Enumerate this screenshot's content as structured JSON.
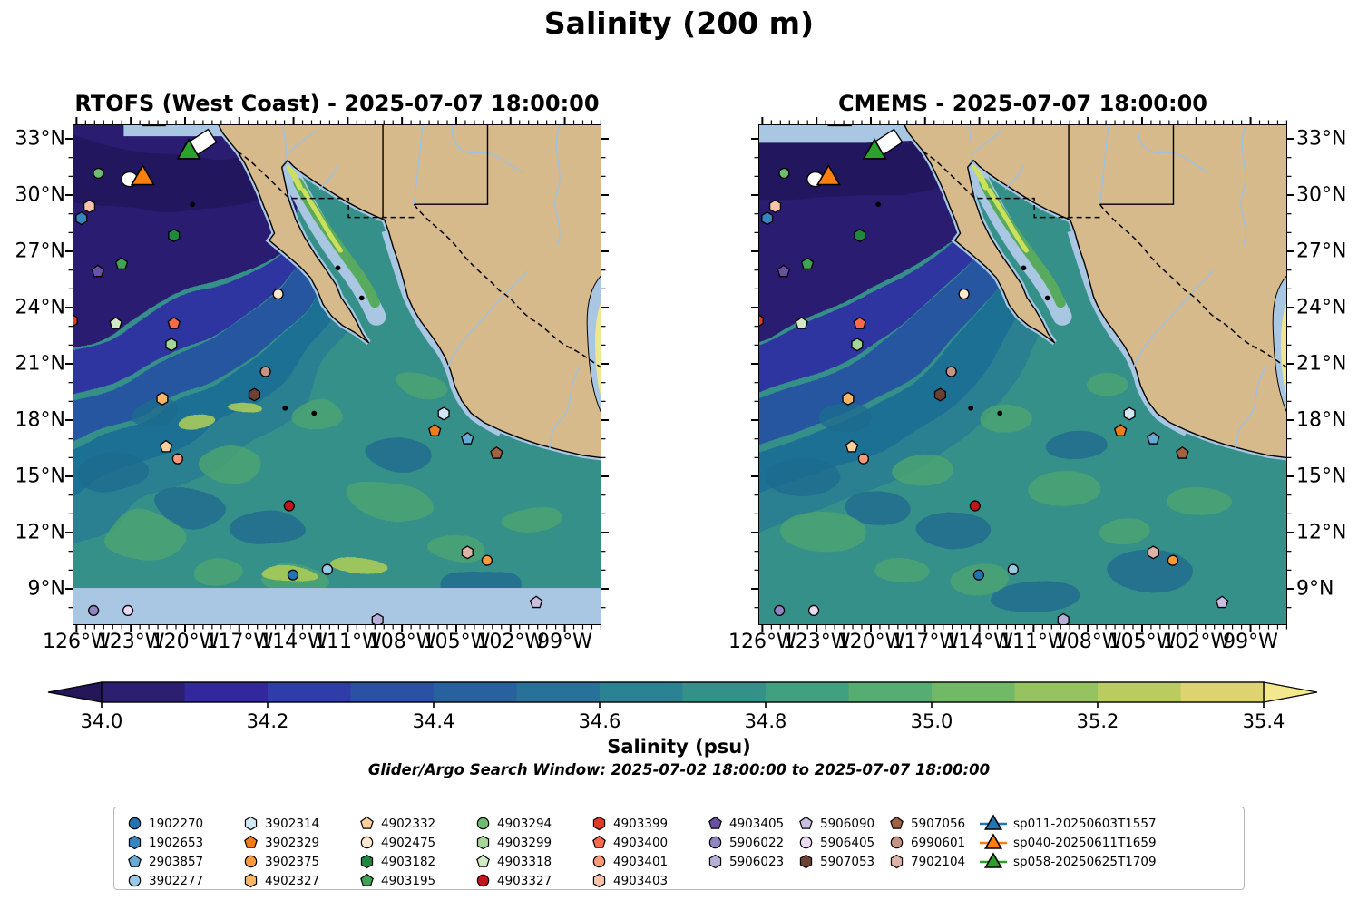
{
  "title": "Salinity (200 m)",
  "subtitle": "Glider/Argo Search Window: 2025-07-02 18:00:00 to 2025-07-07 18:00:00",
  "maps": [
    {
      "title": "RTOFS (West Coast) - 2025-07-07 18:00:00",
      "variant": "rtofs"
    },
    {
      "title": "CMEMS - 2025-07-07 18:00:00",
      "variant": "cmems"
    }
  ],
  "axes": {
    "lat_tick_labels": [
      "33°N",
      "30°N",
      "27°N",
      "24°N",
      "21°N",
      "18°N",
      "15°N",
      "12°N",
      "9°N"
    ],
    "lon_tick_labels": [
      "126°W",
      "123°W",
      "120°W",
      "117°W",
      "114°W",
      "111°W",
      "108°W",
      "105°W",
      "102°W",
      "99°W"
    ]
  },
  "colorbar": {
    "label": "Salinity (psu)",
    "tick_labels": [
      "34.0",
      "34.2",
      "34.4",
      "34.6",
      "34.8",
      "35.0",
      "35.2",
      "35.4"
    ],
    "range": [
      34.0,
      35.4
    ],
    "under_color": "#241658",
    "over_color": "#f4e88e",
    "segment_colors": [
      "#2c1e70",
      "#33279c",
      "#2f3da8",
      "#2a51a4",
      "#27629e",
      "#287299",
      "#2b8292",
      "#33918a",
      "#40a07f",
      "#55ad72",
      "#72b967",
      "#95c35f",
      "#bacb60",
      "#ddd471"
    ]
  },
  "colors": {
    "land": "#d7ba8c",
    "shallow": "#a9c6e2",
    "river": "#9dc1e4",
    "ocean_base": "#35908a",
    "coastline": "#000000"
  },
  "legend": {
    "columns": [
      [
        {
          "id": "1902270",
          "shape": "circle",
          "color": "#2272b4"
        },
        {
          "id": "1902653",
          "shape": "hexagon",
          "color": "#3585c0"
        },
        {
          "id": "2903857",
          "shape": "pentagon",
          "color": "#68aad4"
        },
        {
          "id": "3902277",
          "shape": "circle",
          "color": "#9ac8e6"
        }
      ],
      [
        {
          "id": "3902314",
          "shape": "hexagon",
          "color": "#d2e6f4"
        },
        {
          "id": "3902329",
          "shape": "pentagon",
          "color": "#f07d1a"
        },
        {
          "id": "3902375",
          "shape": "circle",
          "color": "#fb9a3c"
        },
        {
          "id": "4902327",
          "shape": "hexagon",
          "color": "#fdb567"
        }
      ],
      [
        {
          "id": "4902332",
          "shape": "pentagon",
          "color": "#fdcf9b"
        },
        {
          "id": "4902475",
          "shape": "circle",
          "color": "#fee8cf"
        },
        {
          "id": "4903182",
          "shape": "hexagon",
          "color": "#20873f"
        },
        {
          "id": "4903195",
          "shape": "pentagon",
          "color": "#41a257"
        }
      ],
      [
        {
          "id": "4903294",
          "shape": "circle",
          "color": "#6cbd6f"
        },
        {
          "id": "4903299",
          "shape": "hexagon",
          "color": "#a3d798"
        },
        {
          "id": "4903318",
          "shape": "pentagon",
          "color": "#cfeac4"
        },
        {
          "id": "4903327",
          "shape": "circle",
          "color": "#c3161c"
        }
      ],
      [
        {
          "id": "4903399",
          "shape": "hexagon",
          "color": "#e23a28"
        },
        {
          "id": "4903400",
          "shape": "pentagon",
          "color": "#f9694c"
        },
        {
          "id": "4903401",
          "shape": "circle",
          "color": "#fc9a78"
        },
        {
          "id": "4903403",
          "shape": "hexagon",
          "color": "#fcc3ac"
        }
      ],
      [
        {
          "id": "4903405",
          "shape": "pentagon",
          "color": "#6a51a3"
        },
        {
          "id": "5906022",
          "shape": "circle",
          "color": "#9085c0"
        },
        {
          "id": "5906023",
          "shape": "hexagon",
          "color": "#b6b0d8"
        }
      ],
      [
        {
          "id": "5906090",
          "shape": "pentagon",
          "color": "#c9bfe0"
        },
        {
          "id": "5906405",
          "shape": "circle",
          "color": "#ecd9f2"
        },
        {
          "id": "5907053",
          "shape": "hexagon",
          "color": "#6d4034"
        }
      ],
      [
        {
          "id": "5907056",
          "shape": "pentagon",
          "color": "#a16242"
        },
        {
          "id": "6990601",
          "shape": "circle",
          "color": "#c59485"
        },
        {
          "id": "7902104",
          "shape": "hexagon",
          "color": "#ddb3a8"
        }
      ],
      [
        {
          "id": "sp011-20250603T1557",
          "shape": "triangle",
          "color": "#1f77b4"
        },
        {
          "id": "sp040-20250611T1659",
          "shape": "triangle",
          "color": "#ff7f0e"
        },
        {
          "id": "sp058-20250625T1709",
          "shape": "triangle",
          "color": "#2ca02c"
        }
      ]
    ]
  },
  "markers": [
    {
      "id": "glider-track-patch",
      "shape": "quad",
      "color": "#ffffff",
      "fx": 0.241,
      "fy": 0.036
    },
    {
      "id": "sp058-20250625T1709",
      "shape": "triangle",
      "color": "#2ca02c",
      "fx": 0.218,
      "fy": 0.054
    },
    {
      "id": "sp011-20250603T1557",
      "shape": "triangle",
      "color": "#1f77b4",
      "fx": 0.152,
      "fy": -0.012
    },
    {
      "id": "glider-track-crescent",
      "shape": "crescent",
      "color": "#ffffff",
      "fx": 0.106,
      "fy": 0.108
    },
    {
      "id": "sp040-20250611T1659",
      "shape": "triangle",
      "color": "#ff7f0e",
      "fx": 0.131,
      "fy": 0.106
    },
    {
      "id": "4903294",
      "shape": "circle",
      "color": "#6cbd6f",
      "fx": 0.047,
      "fy": 0.096
    },
    {
      "id": "4903403",
      "shape": "hexagon",
      "color": "#fcc3ac",
      "fx": 0.03,
      "fy": 0.162
    },
    {
      "id": "1902653",
      "shape": "hexagon",
      "color": "#3585c0",
      "fx": 0.015,
      "fy": 0.186
    },
    {
      "id": "4903182",
      "shape": "hexagon",
      "color": "#20873f",
      "fx": 0.19,
      "fy": 0.22
    },
    {
      "id": "4903195",
      "shape": "pentagon",
      "color": "#41a257",
      "fx": 0.091,
      "fy": 0.277
    },
    {
      "id": "4903405",
      "shape": "pentagon",
      "color": "#6a51a3",
      "fx": 0.046,
      "fy": 0.292
    },
    {
      "id": "4902475",
      "shape": "circle",
      "color": "#fee8cf",
      "fx": 0.387,
      "fy": 0.337
    },
    {
      "id": "4903399",
      "shape": "hexagon",
      "color": "#e23a28",
      "fx": -0.003,
      "fy": 0.39
    },
    {
      "id": "4903318",
      "shape": "pentagon",
      "color": "#cfeac4",
      "fx": 0.08,
      "fy": 0.396
    },
    {
      "id": "4903400",
      "shape": "pentagon",
      "color": "#f9694c",
      "fx": 0.19,
      "fy": 0.396
    },
    {
      "id": "4903299",
      "shape": "hexagon",
      "color": "#a3d798",
      "fx": 0.185,
      "fy": 0.438
    },
    {
      "id": "6990601",
      "shape": "circle",
      "color": "#c59485",
      "fx": 0.363,
      "fy": 0.492
    },
    {
      "id": "5907053",
      "shape": "hexagon",
      "color": "#6d4034",
      "fx": 0.342,
      "fy": 0.538
    },
    {
      "id": "4902327",
      "shape": "hexagon",
      "color": "#fdb567",
      "fx": 0.168,
      "fy": 0.546
    },
    {
      "id": "3902314",
      "shape": "hexagon",
      "color": "#d2e6f4",
      "fx": 0.7,
      "fy": 0.576
    },
    {
      "id": "3902329",
      "shape": "pentagon",
      "color": "#f07d1a",
      "fx": 0.683,
      "fy": 0.61
    },
    {
      "id": "2903857",
      "shape": "pentagon",
      "color": "#68aad4",
      "fx": 0.745,
      "fy": 0.626
    },
    {
      "id": "4902332",
      "shape": "pentagon",
      "color": "#fdcf9b",
      "fx": 0.175,
      "fy": 0.642
    },
    {
      "id": "5907056",
      "shape": "pentagon",
      "color": "#a16242",
      "fx": 0.8,
      "fy": 0.655
    },
    {
      "id": "4903401",
      "shape": "circle",
      "color": "#fc9a78",
      "fx": 0.197,
      "fy": 0.666
    },
    {
      "id": "4903327",
      "shape": "circle",
      "color": "#c3161c",
      "fx": 0.408,
      "fy": 0.76
    },
    {
      "id": "7902104",
      "shape": "hexagon",
      "color": "#ddb3a8",
      "fx": 0.745,
      "fy": 0.853
    },
    {
      "id": "3902375",
      "shape": "circle",
      "color": "#fb9a3c",
      "fx": 0.782,
      "fy": 0.869
    },
    {
      "id": "3902277",
      "shape": "circle",
      "color": "#9ac8e6",
      "fx": 0.48,
      "fy": 0.887
    },
    {
      "id": "1902270",
      "shape": "circle",
      "color": "#2272b4",
      "fx": 0.415,
      "fy": 0.898
    },
    {
      "id": "5906090",
      "shape": "pentagon",
      "color": "#c9bfe0",
      "fx": 0.875,
      "fy": 0.953
    },
    {
      "id": "5906022",
      "shape": "circle",
      "color": "#9085c0",
      "fx": 0.038,
      "fy": 0.969
    },
    {
      "id": "5906405",
      "shape": "circle",
      "color": "#ecd9f2",
      "fx": 0.103,
      "fy": 0.969
    },
    {
      "id": "5906023",
      "shape": "hexagon",
      "color": "#b6b0d8",
      "fx": 0.575,
      "fy": 0.988
    }
  ],
  "chart_data": {
    "type": "heatmap",
    "title": "Salinity (200 m)",
    "panels": [
      "RTOFS (West Coast) - 2025-07-07 18:00:00",
      "CMEMS - 2025-07-07 18:00:00"
    ],
    "variable": "Salinity (psu)",
    "colorbar_range": [
      34.0,
      35.4
    ],
    "colorbar_ticks": [
      34.0,
      34.2,
      34.4,
      34.6,
      34.8,
      35.0,
      35.2,
      35.4
    ],
    "lat_ticks_deg_n": [
      33,
      30,
      27,
      24,
      21,
      18,
      15,
      12,
      9
    ],
    "lon_ticks_deg_w": [
      126,
      123,
      120,
      117,
      114,
      111,
      108,
      105,
      102,
      99
    ],
    "search_window": "2025-07-02 18:00:00 to 2025-07-07 18:00:00",
    "argo_floats": [
      "1902270",
      "1902653",
      "2903857",
      "3902277",
      "3902314",
      "3902329",
      "3902375",
      "4902327",
      "4902332",
      "4902475",
      "4903182",
      "4903195",
      "4903294",
      "4903299",
      "4903318",
      "4903327",
      "4903399",
      "4903400",
      "4903401",
      "4903403",
      "4903405",
      "5906022",
      "5906023",
      "5906090",
      "5906405",
      "5907053",
      "5907056",
      "6990601",
      "7902104"
    ],
    "gliders": [
      "sp011-20250603T1557",
      "sp040-20250611T1659",
      "sp058-20250625T1709"
    ]
  }
}
